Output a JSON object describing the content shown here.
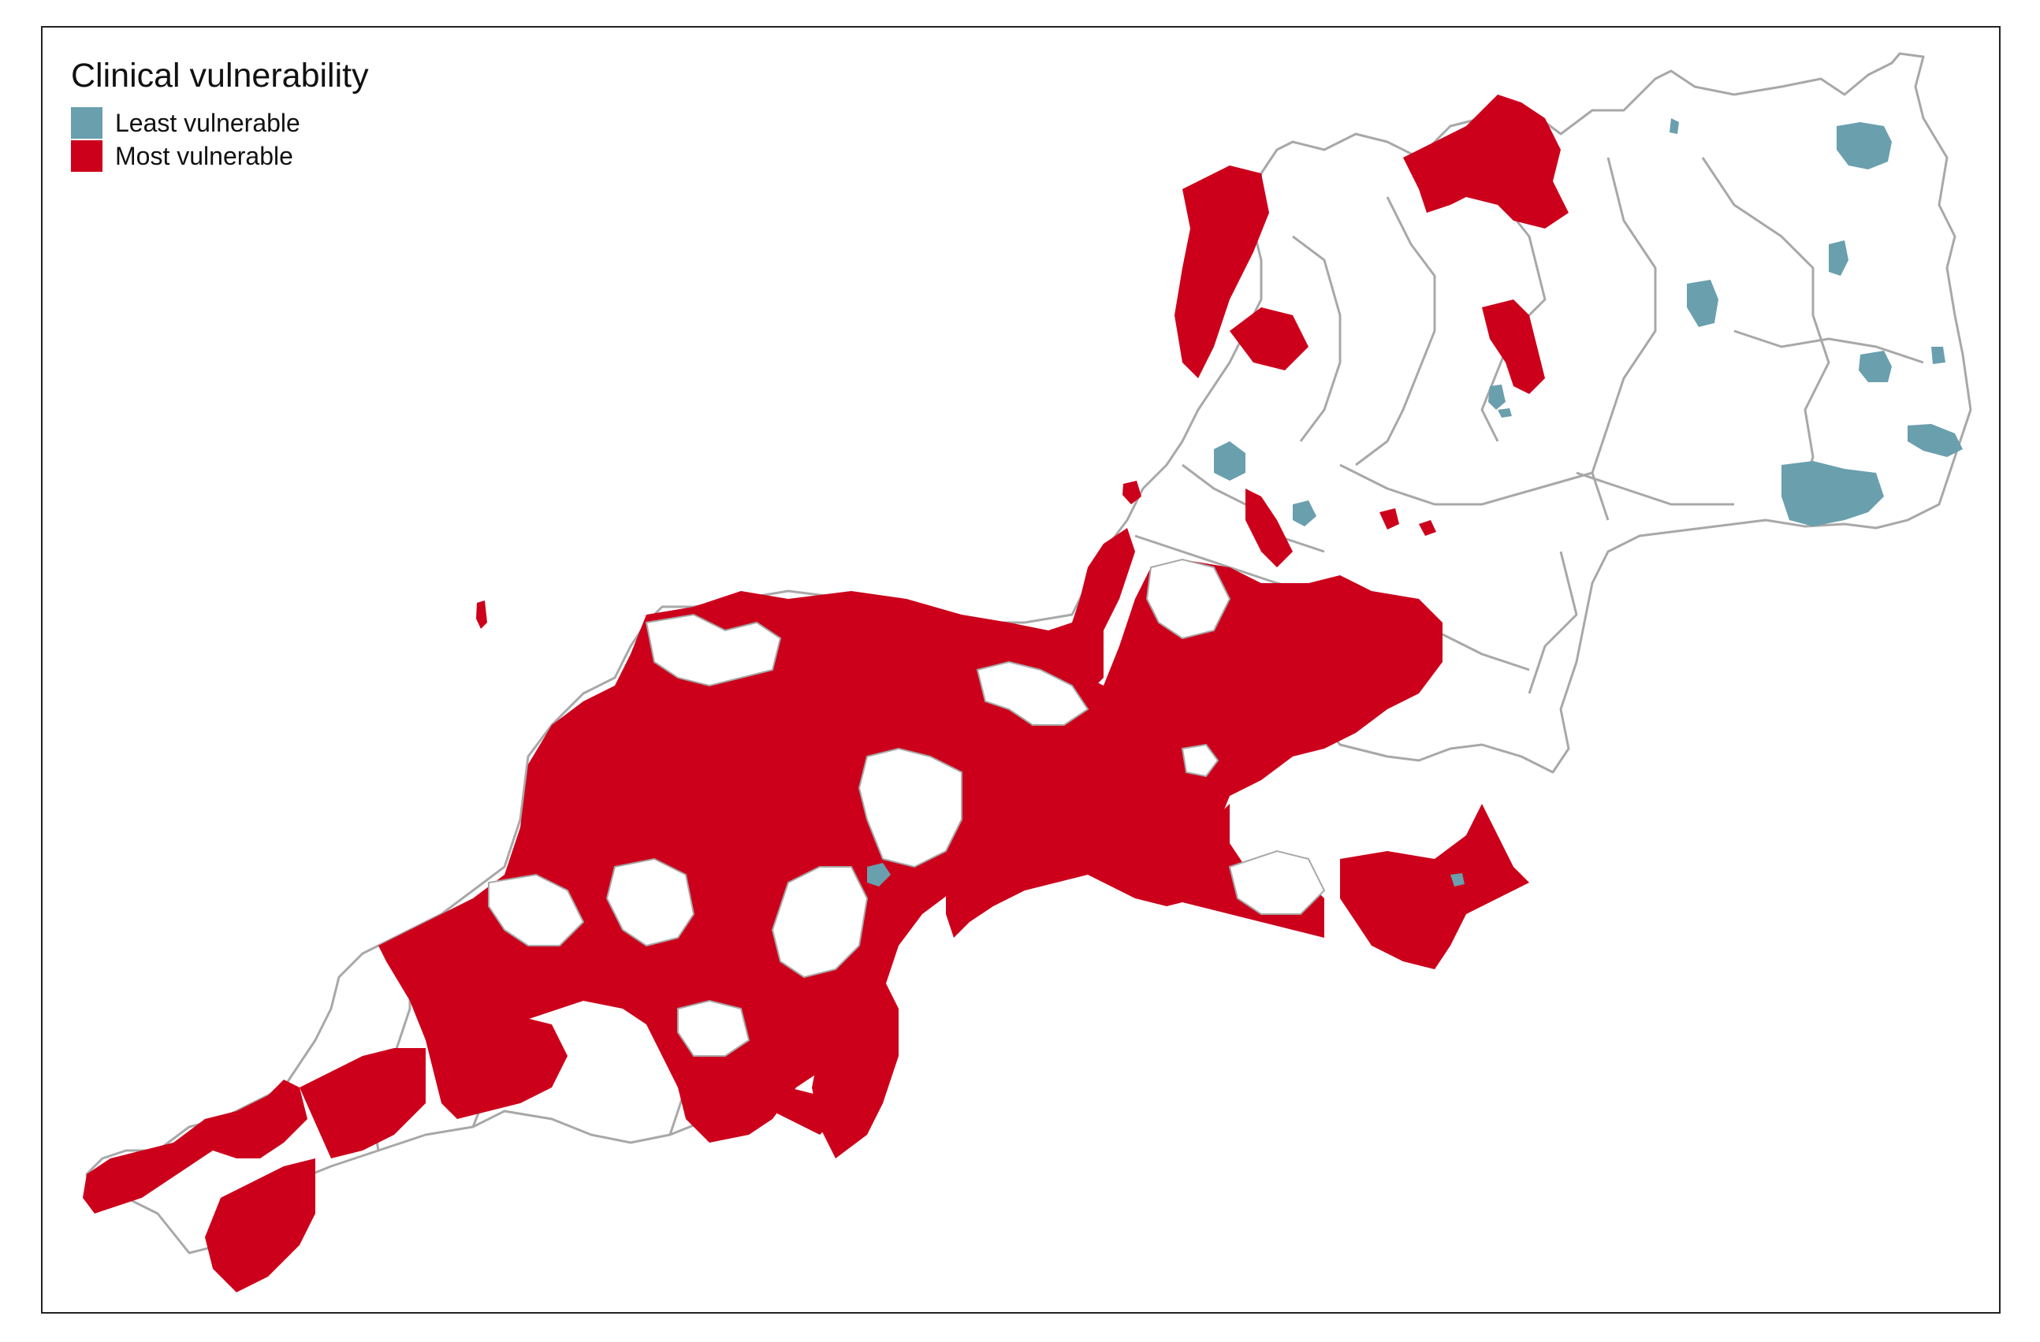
{
  "legend": {
    "title": "Clinical vulnerability",
    "items": [
      {
        "label": "Least vulnerable",
        "color": "#6a9fae"
      },
      {
        "label": "Most vulnerable",
        "color": "#cc001b"
      }
    ]
  },
  "colors": {
    "boundary": "#a8a8a8",
    "frame": "#222222",
    "background": "#ffffff"
  }
}
